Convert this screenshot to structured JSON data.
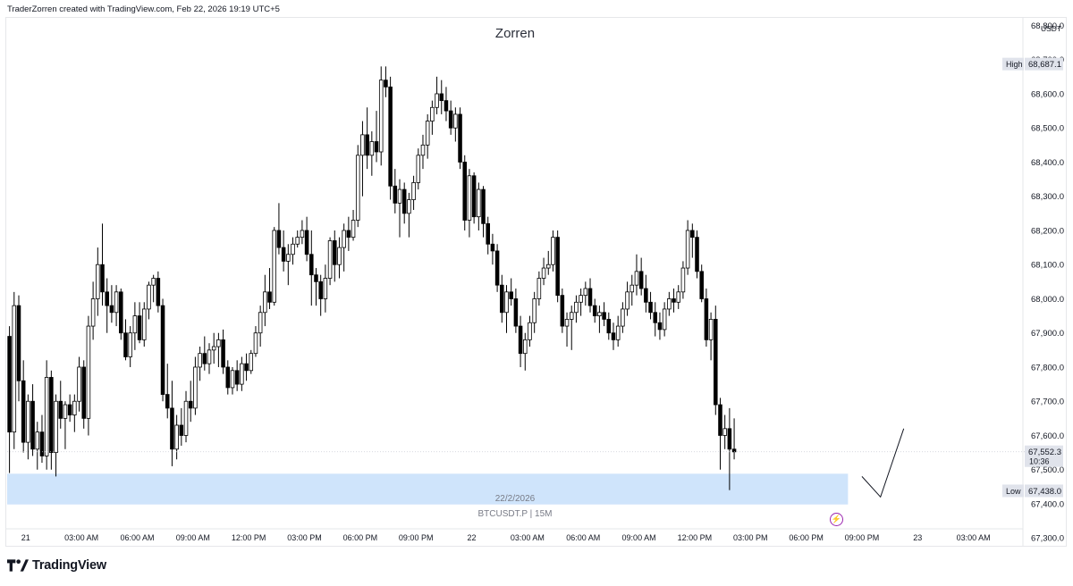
{
  "header": {
    "text": "TraderZorren created with TradingView.com, Feb 22, 2026 19:19 UTC+5"
  },
  "footer": {
    "brand": "TradingView"
  },
  "colors": {
    "up_body": "#ffffff",
    "down_body": "#000000",
    "wick": "#000000",
    "zone": "#cfe4fb",
    "axis_text": "#131722",
    "badge_bg": "#e0e3eb"
  },
  "icons": {
    "bolt": "lightning-bolt-icon",
    "logo": "tradingview-logo-icon"
  },
  "chart_data": {
    "type": "candlestick",
    "title": "Zorren",
    "symbol": "BTCUSDT.P | 15M",
    "date_label": "22/2/2026",
    "currency": "USDT",
    "ylim": [
      67230,
      68830
    ],
    "y_ticks": [
      67300,
      67400,
      67500,
      67600,
      67700,
      67800,
      67900,
      68000,
      68100,
      68200,
      68300,
      68400,
      68500,
      68600,
      68700,
      68800
    ],
    "y_tick_labels": [
      "67,300.0",
      "67,400.0",
      "67,500.0",
      "67,600.0",
      "67,700.0",
      "67,800.0",
      "67,900.0",
      "68,000.0",
      "68,100.0",
      "68,200.0",
      "68,300.0",
      "68,400.0",
      "68,500.0",
      "68,600.0",
      "68,700.0",
      "68,800.0"
    ],
    "x_time_range": [
      "2026-02-20T23:00",
      "2026-02-23T04:45"
    ],
    "x_ticks": [
      {
        "time": "2026-02-21T00:00",
        "label": "21"
      },
      {
        "time": "2026-02-21T03:00",
        "label": "03:00 AM"
      },
      {
        "time": "2026-02-21T06:00",
        "label": "06:00 AM"
      },
      {
        "time": "2026-02-21T09:00",
        "label": "09:00 AM"
      },
      {
        "time": "2026-02-21T12:00",
        "label": "12:00 PM"
      },
      {
        "time": "2026-02-21T15:00",
        "label": "03:00 PM"
      },
      {
        "time": "2026-02-21T18:00",
        "label": "06:00 PM"
      },
      {
        "time": "2026-02-21T21:00",
        "label": "09:00 PM"
      },
      {
        "time": "2026-02-22T00:00",
        "label": "22"
      },
      {
        "time": "2026-02-22T03:00",
        "label": "03:00 AM"
      },
      {
        "time": "2026-02-22T06:00",
        "label": "06:00 AM"
      },
      {
        "time": "2026-02-22T09:00",
        "label": "09:00 AM"
      },
      {
        "time": "2026-02-22T12:00",
        "label": "12:00 PM"
      },
      {
        "time": "2026-02-22T15:00",
        "label": "03:00 PM"
      },
      {
        "time": "2026-02-22T18:00",
        "label": "06:00 PM"
      },
      {
        "time": "2026-02-22T21:00",
        "label": "09:00 PM"
      },
      {
        "time": "2026-02-23T00:00",
        "label": "23"
      },
      {
        "time": "2026-02-23T03:00",
        "label": "03:00 AM"
      }
    ],
    "price_badges": {
      "high": {
        "label": "High",
        "value": "68,687.1",
        "price": 68687.1
      },
      "low": {
        "label": "Low",
        "value": "67,438.0",
        "price": 67438.0
      },
      "last": {
        "value": "67,552.3",
        "countdown": "10:36",
        "price": 67552.3
      }
    },
    "zone": {
      "top_price": 67488,
      "bottom_price": 67398,
      "start": "2026-02-20T23:00",
      "end": "2026-02-22T20:15"
    },
    "projection_path": [
      {
        "time": "2026-02-22T21:00",
        "price": 67480
      },
      {
        "time": "2026-02-22T22:00",
        "price": 67420
      },
      {
        "time": "2026-02-22T23:15",
        "price": 67620
      }
    ],
    "ohlc": [
      [
        67890,
        67920,
        67490,
        67610
      ],
      [
        67610,
        68020,
        67560,
        67980
      ],
      [
        67980,
        68010,
        67700,
        67760
      ],
      [
        67760,
        67820,
        67550,
        67580
      ],
      [
        67580,
        67720,
        67530,
        67700
      ],
      [
        67700,
        67750,
        67540,
        67560
      ],
      [
        67560,
        67640,
        67500,
        67610
      ],
      [
        67610,
        67660,
        67520,
        67540
      ],
      [
        67540,
        67820,
        67500,
        67770
      ],
      [
        67770,
        67790,
        67500,
        67550
      ],
      [
        67550,
        67720,
        67480,
        67700
      ],
      [
        67700,
        67760,
        67620,
        67650
      ],
      [
        67650,
        67700,
        67560,
        67690
      ],
      [
        67690,
        67720,
        67640,
        67660
      ],
      [
        67660,
        67720,
        67610,
        67700
      ],
      [
        67700,
        67830,
        67670,
        67800
      ],
      [
        67800,
        67820,
        67620,
        67650
      ],
      [
        67650,
        67950,
        67600,
        67920
      ],
      [
        67920,
        68050,
        67880,
        68000
      ],
      [
        68000,
        68150,
        67950,
        68100
      ],
      [
        68100,
        68220,
        67980,
        68020
      ],
      [
        68020,
        68060,
        67900,
        67980
      ],
      [
        67980,
        68040,
        67930,
        67960
      ],
      [
        67960,
        68040,
        67920,
        68020
      ],
      [
        68020,
        68030,
        67880,
        67900
      ],
      [
        67900,
        67940,
        67820,
        67830
      ],
      [
        67830,
        67920,
        67800,
        67900
      ],
      [
        67900,
        67990,
        67850,
        67950
      ],
      [
        67950,
        67990,
        67870,
        67880
      ],
      [
        67880,
        67990,
        67860,
        67970
      ],
      [
        67970,
        68050,
        67940,
        68040
      ],
      [
        68040,
        68070,
        67990,
        68060
      ],
      [
        68060,
        68080,
        67960,
        67980
      ],
      [
        67980,
        68000,
        67700,
        67720
      ],
      [
        67720,
        67810,
        67650,
        67680
      ],
      [
        67680,
        67760,
        67510,
        67560
      ],
      [
        67560,
        67660,
        67530,
        67630
      ],
      [
        67630,
        67680,
        67570,
        67600
      ],
      [
        67600,
        67730,
        67580,
        67700
      ],
      [
        67700,
        67760,
        67640,
        67680
      ],
      [
        67680,
        67830,
        67660,
        67800
      ],
      [
        67800,
        67860,
        67760,
        67840
      ],
      [
        67840,
        67890,
        67790,
        67810
      ],
      [
        67810,
        67870,
        67780,
        67850
      ],
      [
        67850,
        67900,
        67810,
        67860
      ],
      [
        67860,
        67900,
        67800,
        67880
      ],
      [
        67880,
        67910,
        67780,
        67800
      ],
      [
        67800,
        67820,
        67720,
        67740
      ],
      [
        67740,
        67800,
        67720,
        67790
      ],
      [
        67790,
        67820,
        67730,
        67750
      ],
      [
        67750,
        67830,
        67730,
        67810
      ],
      [
        67810,
        67840,
        67760,
        67790
      ],
      [
        67790,
        67850,
        67780,
        67840
      ],
      [
        67840,
        67920,
        67830,
        67900
      ],
      [
        67900,
        67980,
        67860,
        67960
      ],
      [
        67960,
        68070,
        67920,
        68020
      ],
      [
        68020,
        68090,
        67970,
        67990
      ],
      [
        67990,
        68210,
        67980,
        68200
      ],
      [
        68200,
        68280,
        68130,
        68150
      ],
      [
        68150,
        68200,
        68080,
        68110
      ],
      [
        68110,
        68160,
        68040,
        68130
      ],
      [
        68130,
        68180,
        68100,
        68160
      ],
      [
        68160,
        68200,
        68150,
        68180
      ],
      [
        68180,
        68230,
        68160,
        68200
      ],
      [
        68200,
        68240,
        68110,
        68130
      ],
      [
        68130,
        68200,
        67980,
        68070
      ],
      [
        68070,
        68090,
        67980,
        68050
      ],
      [
        68050,
        68070,
        67950,
        68000
      ],
      [
        68000,
        68100,
        67960,
        68060
      ],
      [
        68060,
        68180,
        68040,
        68170
      ],
      [
        68170,
        68200,
        68050,
        68100
      ],
      [
        68100,
        68180,
        68060,
        68150
      ],
      [
        68150,
        68220,
        68080,
        68200
      ],
      [
        68200,
        68240,
        68140,
        68180
      ],
      [
        68180,
        68260,
        68170,
        68230
      ],
      [
        68230,
        68450,
        68210,
        68420
      ],
      [
        68420,
        68520,
        68300,
        68480
      ],
      [
        68480,
        68560,
        68380,
        68420
      ],
      [
        68420,
        68490,
        68360,
        68460
      ],
      [
        68460,
        68550,
        68400,
        68430
      ],
      [
        68430,
        68680,
        68390,
        68640
      ],
      [
        68640,
        68680,
        68590,
        68620
      ],
      [
        68620,
        68650,
        68290,
        68330
      ],
      [
        68330,
        68380,
        68250,
        68280
      ],
      [
        68280,
        68350,
        68180,
        68320
      ],
      [
        68320,
        68340,
        68220,
        68250
      ],
      [
        68250,
        68310,
        68180,
        68290
      ],
      [
        68290,
        68360,
        68260,
        68340
      ],
      [
        68340,
        68440,
        68320,
        68420
      ],
      [
        68420,
        68480,
        68380,
        68450
      ],
      [
        68450,
        68540,
        68410,
        68520
      ],
      [
        68520,
        68580,
        68480,
        68560
      ],
      [
        68560,
        68650,
        68540,
        68600
      ],
      [
        68600,
        68640,
        68540,
        68580
      ],
      [
        68580,
        68620,
        68520,
        68550
      ],
      [
        68550,
        68580,
        68480,
        68500
      ],
      [
        68500,
        68560,
        68460,
        68540
      ],
      [
        68540,
        68560,
        68380,
        68400
      ],
      [
        68400,
        68420,
        68200,
        68230
      ],
      [
        68230,
        68380,
        68180,
        68360
      ],
      [
        68360,
        68370,
        68220,
        68240
      ],
      [
        68240,
        68340,
        68200,
        68320
      ],
      [
        68320,
        68330,
        68180,
        68220
      ],
      [
        68220,
        68240,
        68130,
        68160
      ],
      [
        68160,
        68190,
        68100,
        68140
      ],
      [
        68140,
        68160,
        68020,
        68040
      ],
      [
        68040,
        68070,
        67930,
        67960
      ],
      [
        67960,
        68040,
        67900,
        68020
      ],
      [
        68020,
        68060,
        67980,
        68000
      ],
      [
        68000,
        68030,
        67900,
        67920
      ],
      [
        67920,
        67950,
        67800,
        67840
      ],
      [
        67840,
        67900,
        67790,
        67880
      ],
      [
        67880,
        67950,
        67860,
        67930
      ],
      [
        67930,
        68020,
        67900,
        68000
      ],
      [
        68000,
        68080,
        67980,
        68060
      ],
      [
        68060,
        68120,
        68040,
        68090
      ],
      [
        68090,
        68140,
        68070,
        68100
      ],
      [
        68100,
        68200,
        68080,
        68180
      ],
      [
        68180,
        68200,
        67990,
        68010
      ],
      [
        68010,
        68030,
        67900,
        67920
      ],
      [
        67920,
        67960,
        67860,
        67940
      ],
      [
        67940,
        67980,
        67850,
        67960
      ],
      [
        67960,
        68010,
        67930,
        67990
      ],
      [
        67990,
        68030,
        67950,
        68010
      ],
      [
        68010,
        68050,
        67980,
        68030
      ],
      [
        68030,
        68060,
        67960,
        67980
      ],
      [
        67980,
        68000,
        67930,
        67950
      ],
      [
        67950,
        67980,
        67900,
        67960
      ],
      [
        67960,
        67990,
        67920,
        67940
      ],
      [
        67940,
        67960,
        67880,
        67900
      ],
      [
        67900,
        67930,
        67850,
        67880
      ],
      [
        67880,
        67950,
        67860,
        67920
      ],
      [
        67920,
        67990,
        67900,
        67970
      ],
      [
        67970,
        68050,
        67950,
        68020
      ],
      [
        68020,
        68070,
        67980,
        68040
      ],
      [
        68040,
        68130,
        68010,
        68080
      ],
      [
        68080,
        68120,
        68010,
        68030
      ],
      [
        68030,
        68070,
        67960,
        67990
      ],
      [
        67990,
        68020,
        67940,
        67960
      ],
      [
        67960,
        67990,
        67890,
        67930
      ],
      [
        67930,
        67960,
        67880,
        67910
      ],
      [
        67910,
        67990,
        67890,
        67970
      ],
      [
        67970,
        68020,
        67950,
        68000
      ],
      [
        68000,
        68030,
        67960,
        67990
      ],
      [
        67990,
        68040,
        67970,
        68020
      ],
      [
        68020,
        68110,
        68000,
        68090
      ],
      [
        68090,
        68230,
        68070,
        68200
      ],
      [
        68200,
        68220,
        68120,
        68180
      ],
      [
        68180,
        68200,
        68060,
        68080
      ],
      [
        68080,
        68100,
        67990,
        68000
      ],
      [
        68000,
        68030,
        67860,
        67880
      ],
      [
        67880,
        67960,
        67820,
        67940
      ],
      [
        67940,
        67980,
        67660,
        67690
      ],
      [
        67690,
        67710,
        67500,
        67600
      ],
      [
        67600,
        67660,
        67560,
        67620
      ],
      [
        67620,
        67680,
        67440,
        67560
      ],
      [
        67560,
        67650,
        67530,
        67552
      ]
    ]
  }
}
